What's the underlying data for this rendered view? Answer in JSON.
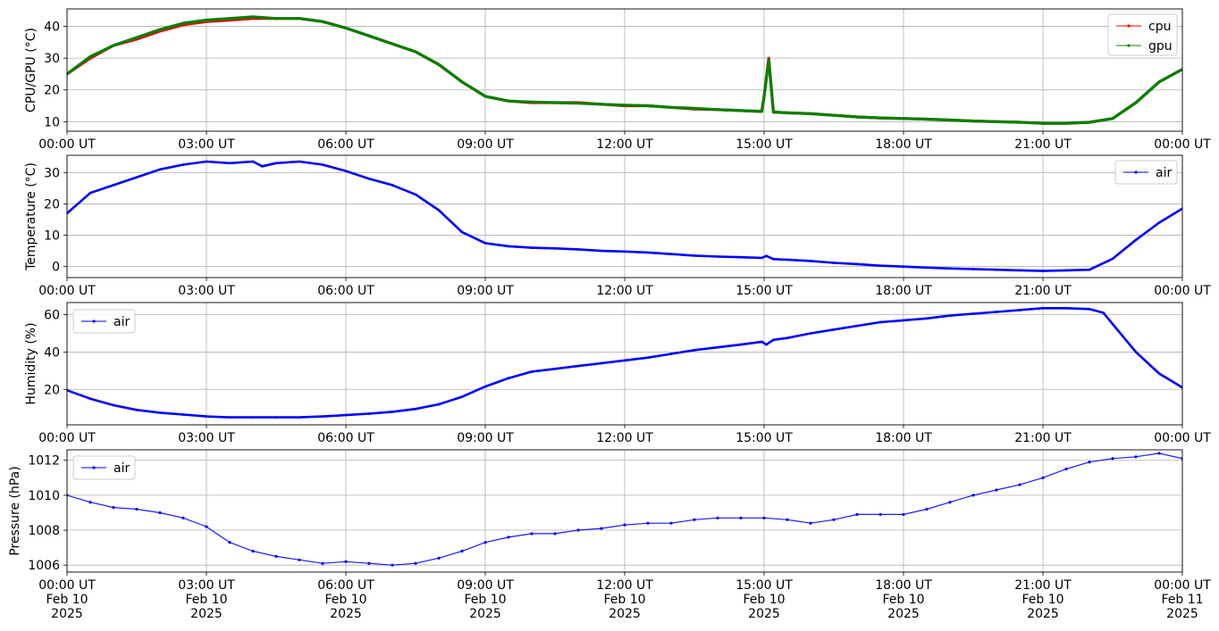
{
  "chart_data": [
    {
      "type": "line",
      "ylabel": "CPU/GPU (°C)",
      "x_unit": "hours since 00:00 UT Feb 10 2025",
      "xlim": [
        0,
        24
      ],
      "ylim": [
        7,
        45.5
      ],
      "yticks": [
        10,
        20,
        30,
        40
      ],
      "xtick_labels": [
        "00:00 UT",
        "03:00 UT",
        "06:00 UT",
        "09:00 UT",
        "12:00 UT",
        "15:00 UT",
        "18:00 UT",
        "21:00 UT",
        "00:00 UT"
      ],
      "grid": true,
      "legend_position": "top-right",
      "x": [
        0,
        0.5,
        1,
        1.5,
        2,
        2.5,
        3,
        3.5,
        4,
        4.5,
        5,
        5.5,
        6,
        6.5,
        7,
        7.5,
        8,
        8.5,
        9,
        9.5,
        10,
        10.5,
        11,
        11.5,
        12,
        12.5,
        13,
        13.5,
        14,
        14.5,
        14.95,
        15.0,
        15.1,
        15.2,
        15.5,
        16,
        16.5,
        17,
        17.5,
        18,
        18.5,
        19,
        19.5,
        20,
        20.5,
        21,
        21.5,
        22,
        22.5,
        23,
        23.5,
        24
      ],
      "series": [
        {
          "name": "cpu",
          "color": "#ff0000",
          "values": [
            25,
            30,
            34,
            36,
            38.5,
            40.5,
            41.5,
            42,
            42.5,
            42.5,
            42.5,
            41.5,
            39.5,
            37,
            34.5,
            32,
            28,
            22.5,
            18,
            16.5,
            16,
            16,
            16,
            15.5,
            15,
            15,
            14.5,
            14,
            13.8,
            13.5,
            13.2,
            18,
            30,
            13,
            12.8,
            12.5,
            12,
            11.5,
            11.2,
            11,
            10.8,
            10.5,
            10.2,
            10,
            9.8,
            9.5,
            9.5,
            9.8,
            11,
            16,
            22.5,
            26.5
          ]
        },
        {
          "name": "gpu",
          "color": "#008000",
          "values": [
            25,
            30.5,
            34,
            36.5,
            39,
            41,
            42,
            42.5,
            43,
            42.5,
            42.5,
            41.5,
            39.5,
            37,
            34.5,
            32,
            28,
            22.5,
            18,
            16.5,
            16.2,
            16,
            15.8,
            15.5,
            15.2,
            15,
            14.5,
            14.2,
            13.8,
            13.5,
            13.2,
            18,
            29.5,
            13,
            12.8,
            12.5,
            12,
            11.5,
            11.2,
            11,
            10.8,
            10.5,
            10.2,
            10,
            9.8,
            9.5,
            9.5,
            9.8,
            11,
            16,
            22.5,
            26.5
          ]
        }
      ]
    },
    {
      "type": "line",
      "ylabel": "Temperature (°C)",
      "xlim": [
        0,
        24
      ],
      "ylim": [
        -3.5,
        35.5
      ],
      "yticks": [
        0,
        10,
        20,
        30
      ],
      "xtick_labels": [
        "00:00 UT",
        "03:00 UT",
        "06:00 UT",
        "09:00 UT",
        "12:00 UT",
        "15:00 UT",
        "18:00 UT",
        "21:00 UT",
        "00:00 UT"
      ],
      "grid": true,
      "legend_position": "top-right",
      "x": [
        0,
        0.5,
        1,
        1.5,
        2,
        2.5,
        3,
        3.5,
        4,
        4.2,
        4.5,
        5,
        5.5,
        6,
        6.5,
        7,
        7.5,
        8,
        8.5,
        9,
        9.5,
        10,
        10.5,
        11,
        11.5,
        12,
        12.5,
        13,
        13.5,
        14,
        14.5,
        14.95,
        15.05,
        15.2,
        15.5,
        16,
        16.5,
        17,
        17.5,
        18,
        18.5,
        19,
        19.5,
        20,
        20.5,
        21,
        21.5,
        22,
        22.5,
        23,
        23.5,
        24
      ],
      "series": [
        {
          "name": "air",
          "color": "#0000ff",
          "values": [
            17,
            23.5,
            26,
            28.5,
            31,
            32.5,
            33.5,
            33,
            33.5,
            32,
            33,
            33.5,
            32.5,
            30.5,
            28,
            26,
            23,
            18,
            11,
            7.5,
            6.5,
            6,
            5.8,
            5.5,
            5,
            4.8,
            4.5,
            4,
            3.5,
            3.2,
            3,
            2.8,
            3.4,
            2.4,
            2.2,
            1.8,
            1.2,
            0.8,
            0.3,
            0,
            -0.3,
            -0.6,
            -0.8,
            -1,
            -1.2,
            -1.4,
            -1.2,
            -1,
            2.5,
            8.5,
            14,
            18.5
          ]
        }
      ]
    },
    {
      "type": "line",
      "ylabel": "Humidity (%)",
      "xlim": [
        0,
        24
      ],
      "ylim": [
        1,
        66.5
      ],
      "yticks": [
        20,
        40,
        60
      ],
      "xtick_labels": [
        "00:00 UT",
        "03:00 UT",
        "06:00 UT",
        "09:00 UT",
        "12:00 UT",
        "15:00 UT",
        "18:00 UT",
        "21:00 UT",
        "00:00 UT"
      ],
      "grid": true,
      "legend_position": "top-left",
      "x": [
        0,
        0.5,
        1,
        1.5,
        2,
        2.5,
        3,
        3.5,
        4,
        4.5,
        5,
        5.5,
        6,
        6.5,
        7,
        7.5,
        8,
        8.5,
        9,
        9.5,
        10,
        10.5,
        11,
        11.5,
        12,
        12.5,
        13,
        13.5,
        14,
        14.5,
        14.95,
        15.05,
        15.2,
        15.5,
        16,
        16.5,
        17,
        17.5,
        18,
        18.5,
        19,
        19.5,
        20,
        20.5,
        21,
        21.5,
        22,
        22.3,
        22.5,
        23,
        23.5,
        24
      ],
      "series": [
        {
          "name": "air",
          "color": "#0000ff",
          "values": [
            19.5,
            15,
            11.5,
            9,
            7.5,
            6.5,
            5.5,
            5,
            5,
            5,
            5,
            5.5,
            6.2,
            7,
            8,
            9.5,
            12,
            16,
            21.5,
            26,
            29.5,
            31,
            32.5,
            34,
            35.5,
            37,
            39,
            41,
            42.5,
            44,
            45.5,
            44,
            46.5,
            47.5,
            50,
            52,
            54,
            56,
            57,
            58,
            59.5,
            60.5,
            61.5,
            62.5,
            63.5,
            63.5,
            63,
            61,
            55,
            40,
            28.5,
            21
          ]
        }
      ]
    },
    {
      "type": "scatter",
      "ylabel": "Pressure (hPa)",
      "xlim": [
        0,
        24
      ],
      "ylim": [
        1005.6,
        1012.6
      ],
      "yticks": [
        1006,
        1008,
        1010,
        1012
      ],
      "xtick_labels": [
        "00:00 UT\nFeb 10\n2025",
        "03:00 UT\nFeb 10\n2025",
        "06:00 UT\nFeb 10\n2025",
        "09:00 UT\nFeb 10\n2025",
        "12:00 UT\nFeb 10\n2025",
        "15:00 UT\nFeb 10\n2025",
        "18:00 UT\nFeb 10\n2025",
        "21:00 UT\nFeb 10\n2025",
        "00:00 UT\nFeb 11\n2025"
      ],
      "grid": true,
      "legend_position": "top-left",
      "x": [
        0,
        0.5,
        1,
        1.5,
        2,
        2.5,
        3,
        3.5,
        4,
        4.5,
        5,
        5.5,
        6,
        6.5,
        7,
        7.5,
        8,
        8.5,
        9,
        9.5,
        10,
        10.5,
        11,
        11.5,
        12,
        12.5,
        13,
        13.5,
        14,
        14.5,
        15,
        15.5,
        16,
        16.5,
        17,
        17.5,
        18,
        18.5,
        19,
        19.5,
        20,
        20.5,
        21,
        21.5,
        22,
        22.5,
        23,
        23.5,
        24
      ],
      "series": [
        {
          "name": "air",
          "color": "#0000ff",
          "values": [
            1010,
            1009.6,
            1009.3,
            1009.2,
            1009,
            1008.7,
            1008.2,
            1007.3,
            1006.8,
            1006.5,
            1006.3,
            1006.1,
            1006.2,
            1006.1,
            1006.0,
            1006.1,
            1006.4,
            1006.8,
            1007.3,
            1007.6,
            1007.8,
            1007.8,
            1008.0,
            1008.1,
            1008.3,
            1008.4,
            1008.4,
            1008.6,
            1008.7,
            1008.7,
            1008.7,
            1008.6,
            1008.4,
            1008.6,
            1008.9,
            1008.9,
            1008.9,
            1009.2,
            1009.6,
            1010.0,
            1010.3,
            1010.6,
            1011.0,
            1011.5,
            1011.9,
            1012.1,
            1012.2,
            1012.4,
            1012.1
          ]
        }
      ]
    }
  ]
}
